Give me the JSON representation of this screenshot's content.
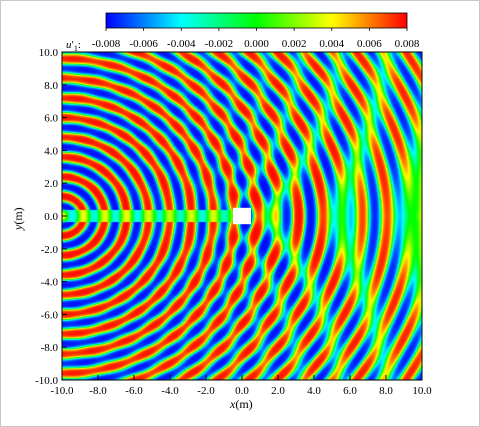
{
  "chart_data": {
    "type": "heatmap",
    "title": "",
    "colorbar": {
      "label_symbol": "u",
      "label_prime": "′",
      "label_sub": "1",
      "label_suffix": ":",
      "ticks": [
        "-0.008",
        "-0.006",
        "-0.004",
        "-0.002",
        "0.000",
        "0.002",
        "0.004",
        "0.006",
        "0.008"
      ],
      "range": [
        -0.008,
        0.008
      ],
      "colormap": [
        "#0000ff",
        "#00ffff",
        "#00ff00",
        "#ffff00",
        "#ff0000"
      ]
    },
    "xaxis": {
      "label_var": "x",
      "label_unit": "(m)",
      "range": [
        -10.0,
        10.0
      ],
      "ticks": [
        "-10.0",
        "-8.0",
        "-6.0",
        "-4.0",
        "-2.0",
        "0.0",
        "2.0",
        "4.0",
        "6.0",
        "8.0",
        "10.0"
      ]
    },
    "yaxis": {
      "label_var": "y",
      "label_unit": "(m)",
      "range": [
        -10.0,
        10.0
      ],
      "ticks": [
        "10.0",
        "8.0",
        "6.0",
        "4.0",
        "2.0",
        "0.0",
        "-2.0",
        "-4.0",
        "-6.0",
        "-8.0",
        "-10.0"
      ]
    },
    "obstacle": {
      "shape": "square",
      "center": [
        0.0,
        0.0
      ],
      "size": 1.0,
      "color": "#ffffff"
    },
    "source": {
      "x": -10.0,
      "y": 0.0
    },
    "wavelength": 1.2
  }
}
